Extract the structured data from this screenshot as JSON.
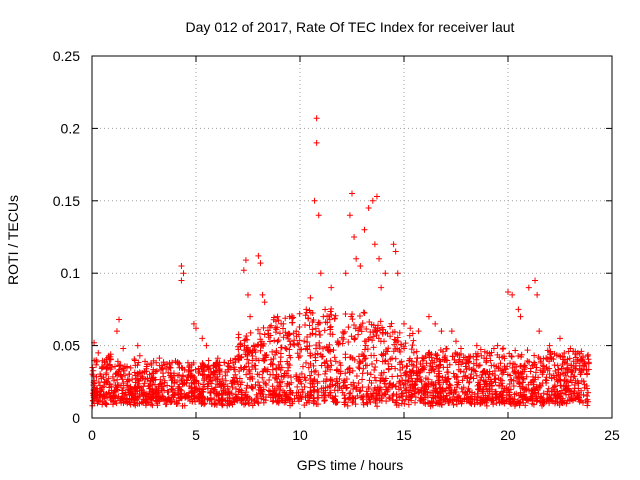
{
  "chart_data": {
    "type": "scatter",
    "title": "Day 012 of 2017, Rate Of TEC Index for receiver laut",
    "xlabel": "GPS time / hours",
    "ylabel": "ROTI / TECUs",
    "xlim": [
      0,
      25
    ],
    "ylim": [
      0,
      0.25
    ],
    "xticks": [
      "0",
      "5",
      "10",
      "15",
      "20",
      "25"
    ],
    "yticks": [
      "0",
      "0.05",
      "0.1",
      "0.15",
      "0.2",
      "0.25"
    ],
    "grid": true,
    "marker": "+",
    "color": "#ff0000",
    "series": [
      {
        "values_x": [
          0.1,
          0.2,
          0.3,
          0.5,
          0.9,
          1.2,
          1.3,
          1.5,
          2.2,
          2.3,
          4.3,
          4.3,
          4.4,
          4.9,
          5.0,
          5.3,
          5.5,
          7.3,
          7.4,
          7.5,
          7.6,
          8.0,
          8.1,
          8.2,
          8.3,
          9.2,
          9.5,
          10.3,
          10.5,
          10.7,
          10.8,
          10.8,
          10.9,
          11.0,
          11.5,
          12.2,
          12.4,
          12.5,
          12.6,
          12.7,
          12.9,
          13.1,
          13.3,
          13.5,
          13.6,
          13.7,
          13.8,
          13.9,
          14.1,
          14.5,
          14.6,
          14.7,
          15.0,
          15.3,
          15.7,
          16.2,
          16.5,
          16.8,
          17.3,
          17.5,
          18.5,
          19.0,
          19.5,
          20.0,
          20.2,
          20.5,
          20.6,
          21.0,
          21.3,
          21.4,
          21.5,
          22.0,
          22.5,
          23.0,
          23.5,
          23.8
        ],
        "values_y": [
          0.052,
          0.04,
          0.045,
          0.035,
          0.044,
          0.06,
          0.068,
          0.048,
          0.05,
          0.043,
          0.095,
          0.105,
          0.1,
          0.065,
          0.062,
          0.055,
          0.05,
          0.102,
          0.109,
          0.085,
          0.07,
          0.112,
          0.107,
          0.085,
          0.08,
          0.065,
          0.07,
          0.075,
          0.083,
          0.15,
          0.207,
          0.19,
          0.14,
          0.1,
          0.09,
          0.1,
          0.14,
          0.155,
          0.125,
          0.11,
          0.105,
          0.13,
          0.145,
          0.15,
          0.12,
          0.153,
          0.11,
          0.09,
          0.1,
          0.12,
          0.115,
          0.1,
          0.065,
          0.062,
          0.06,
          0.07,
          0.065,
          0.06,
          0.06,
          0.053,
          0.05,
          0.045,
          0.05,
          0.087,
          0.085,
          0.075,
          0.07,
          0.09,
          0.095,
          0.085,
          0.06,
          0.05,
          0.055,
          0.048,
          0.04,
          0.03
        ]
      }
    ],
    "baseline_note": ""
  }
}
